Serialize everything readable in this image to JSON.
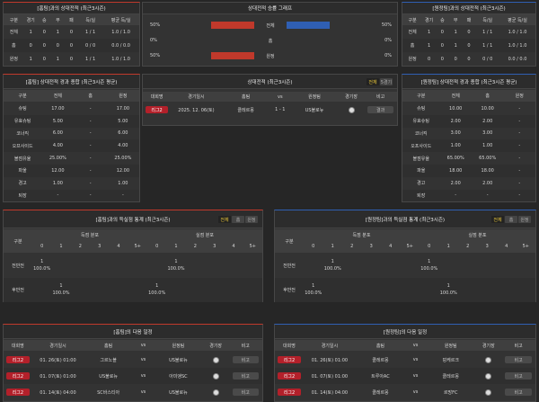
{
  "home_h2h": {
    "title": "[홈팀]과의 상대전적 (최근3시즌)",
    "columns": [
      "구분",
      "경기",
      "승",
      "무",
      "패",
      "득/실",
      "평균 득/실"
    ],
    "rows": [
      [
        "전체",
        1,
        0,
        1,
        0,
        "1 / 1",
        "1.0 / 1.0"
      ],
      [
        "홈",
        0,
        0,
        0,
        0,
        "0 / 0",
        "0.0 / 0.0"
      ],
      [
        "원정",
        1,
        0,
        1,
        0,
        "1 / 1",
        "1.0 / 1.0"
      ]
    ]
  },
  "winrate": {
    "title": "상대전적 승률 그래프",
    "rows": [
      {
        "label": "전체",
        "home": {
          "value": 50,
          "label": "50%"
        },
        "away": {
          "value": 50,
          "label": "50%"
        }
      },
      {
        "label": "홈",
        "home": {
          "value": 0,
          "label": "0%"
        },
        "away": {
          "value": 0,
          "label": "0%"
        }
      },
      {
        "label": "원정",
        "home": {
          "value": 50,
          "label": "50%"
        },
        "away": {
          "value": 0,
          "label": "0%"
        }
      }
    ]
  },
  "away_h2h": {
    "title": "[원정팀]과의 상대전적 (최근3시즌)",
    "columns": [
      "구분",
      "경기",
      "승",
      "무",
      "패",
      "득/실",
      "평균 득/실"
    ],
    "rows": [
      [
        "전체",
        1,
        0,
        1,
        0,
        "1 / 1",
        "1.0 / 1.0"
      ],
      [
        "홈",
        1,
        0,
        1,
        0,
        "1 / 1",
        "1.0 / 1.0"
      ],
      [
        "원정",
        0,
        0,
        0,
        0,
        "0 / 0",
        "0.0 / 0.0"
      ]
    ]
  },
  "home_stats": {
    "title": "[홈팀] 상대전적 경과 종합 (최근3시즌 평균)",
    "columns": [
      "구분",
      "전체",
      "홈",
      "원정"
    ],
    "rows": [
      [
        "슈팅",
        "17.00",
        "-",
        "17.00"
      ],
      [
        "유효슈팅",
        "5.00",
        "-",
        "5.00"
      ],
      [
        "코너킥",
        "6.00",
        "-",
        "6.00"
      ],
      [
        "오프사이드",
        "4.00",
        "-",
        "4.00"
      ],
      [
        "볼점유율",
        "25.00%",
        "-",
        "25.00%"
      ],
      [
        "파울",
        "12.00",
        "-",
        "12.00"
      ],
      [
        "경고",
        "1.00",
        "-",
        "1.00"
      ],
      [
        "퇴장",
        "-",
        "-",
        "-"
      ]
    ]
  },
  "h2h_matches": {
    "title": "상대전적 (최근3시즌)",
    "tabs": [
      "전체",
      "5경기"
    ],
    "columns": [
      "대회명",
      "경기일시",
      "홈팀",
      "vs",
      "원정팀",
      "경기장",
      "비고"
    ],
    "rows": [
      {
        "league": "리그2",
        "date": "2025. 12. 06(토)",
        "home": "클레르몽",
        "vs": "1 - 1",
        "away": "US불로뉴",
        "note": "결과"
      }
    ]
  },
  "away_stats": {
    "title": "[원정팀] 상대전적 경과 종합 (최근3시즌 평균)",
    "columns": [
      "구분",
      "전체",
      "홈",
      "원정"
    ],
    "rows": [
      [
        "슈팅",
        "10.00",
        "10.00",
        "-"
      ],
      [
        "유효슈팅",
        "2.00",
        "2.00",
        "-"
      ],
      [
        "코너킥",
        "3.00",
        "3.00",
        "-"
      ],
      [
        "오프사이드",
        "1.00",
        "1.00",
        "-"
      ],
      [
        "볼점유율",
        "65.00%",
        "65.00%",
        "-"
      ],
      [
        "파울",
        "18.00",
        "18.00",
        "-"
      ],
      [
        "경고",
        "2.00",
        "2.00",
        "-"
      ],
      [
        "퇴장",
        "-",
        "-",
        "-"
      ]
    ]
  },
  "home_goals": {
    "title": "[홈팀]과의 득실점 통계 (최근3시즌)",
    "tabs": [
      "전체",
      "홈",
      "원정"
    ],
    "label_column": "구분",
    "groups": [
      "득점 분포",
      "실점 분포"
    ],
    "bins": [
      "0",
      "1",
      "2",
      "3",
      "4",
      "5+"
    ],
    "rows": [
      {
        "label": "전반전",
        "cells": [
          {
            "count": 1,
            "pct": "100.0%"
          },
          null,
          null,
          null,
          null,
          null,
          null,
          {
            "count": 1,
            "pct": "100.0%"
          },
          null,
          null,
          null,
          null
        ]
      },
      {
        "label": "후반전",
        "cells": [
          null,
          {
            "count": 1,
            "pct": "100.0%"
          },
          null,
          null,
          null,
          null,
          {
            "count": 1,
            "pct": "100.0%"
          },
          null,
          null,
          null,
          null,
          null
        ]
      }
    ]
  },
  "away_goals": {
    "title": "[원정팀]과의 득실점 통계 (최근3시즌)",
    "tabs": [
      "전체",
      "홈",
      "원정"
    ],
    "label_column": "구분",
    "groups": [
      "득점 분포",
      "실점 분포"
    ],
    "bins": [
      "0",
      "1",
      "2",
      "3",
      "4",
      "5+"
    ],
    "rows": [
      {
        "label": "전반전",
        "cells": [
          null,
          {
            "count": 1,
            "pct": "100.0%"
          },
          null,
          null,
          null,
          null,
          {
            "count": 1,
            "pct": "100.0%"
          },
          null,
          null,
          null,
          null,
          null
        ]
      },
      {
        "label": "후반전",
        "cells": [
          {
            "count": 1,
            "pct": "100.0%"
          },
          null,
          null,
          null,
          null,
          null,
          null,
          {
            "count": 1,
            "pct": "100.0%"
          },
          null,
          null,
          null,
          null
        ]
      }
    ]
  },
  "home_next": {
    "title": "[홈팀]의 다음 일정",
    "columns": [
      "대회명",
      "경기일시",
      "홈팀",
      "vs",
      "원정팀",
      "경기장",
      "비고"
    ],
    "rows": [
      {
        "league": "리그2",
        "date": "01. 26(토) 01:00",
        "home": "그르노블",
        "vs": "vs",
        "away": "US불로뉴",
        "note": "비고"
      },
      {
        "league": "리그2",
        "date": "01. 07(토) 01:00",
        "home": "US불로뉴",
        "vs": "vs",
        "away": "아미앵SC",
        "note": "비고"
      },
      {
        "league": "리그2",
        "date": "01. 14(토) 04:00",
        "home": "SC바스티아",
        "vs": "vs",
        "away": "US불로뉴",
        "note": "비고"
      }
    ]
  },
  "away_next": {
    "title": "[원정팀]의 다음 일정",
    "columns": [
      "대회명",
      "경기일시",
      "홈팀",
      "vs",
      "원정팀",
      "경기장",
      "비고"
    ],
    "rows": [
      {
        "league": "리그2",
        "date": "01. 26(토) 01:00",
        "home": "클레르몽",
        "vs": "vs",
        "away": "덩케르크",
        "note": "비고"
      },
      {
        "league": "리그2",
        "date": "01. 07(토) 01:00",
        "home": "트루아AC",
        "vs": "vs",
        "away": "클레르몽",
        "note": "비고"
      },
      {
        "league": "리그2",
        "date": "01. 14(토) 04:00",
        "home": "클레르몽",
        "vs": "vs",
        "away": "르망FC",
        "note": "비고"
      }
    ]
  }
}
